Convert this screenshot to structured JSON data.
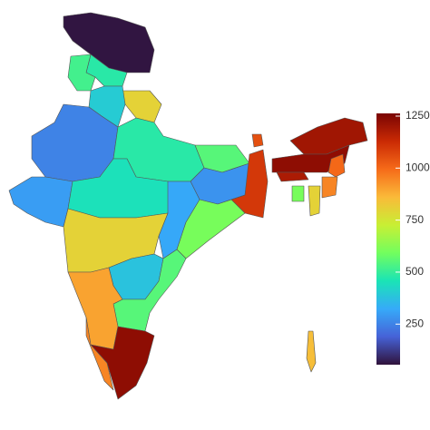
{
  "chart_data": {
    "type": "choropleth",
    "values": [
      60,
      480,
      520,
      800,
      400,
      250,
      300,
      480,
      450,
      550,
      280,
      1100,
      320,
      600,
      800,
      380,
      550,
      900,
      950,
      1230,
      1050,
      1200,
      1230,
      1180,
      1000,
      950,
      800,
      600,
      850
    ],
    "clim": [
      55,
      1263
    ],
    "cticks": [
      250,
      500,
      750,
      1000,
      1250
    ],
    "colormap": [
      "#30123b",
      "#4662d7",
      "#36aaf9",
      "#1ae4b6",
      "#72fe5e",
      "#c8ef34",
      "#faba39",
      "#f66b19",
      "#ca2a04",
      "#7a0403"
    ]
  }
}
